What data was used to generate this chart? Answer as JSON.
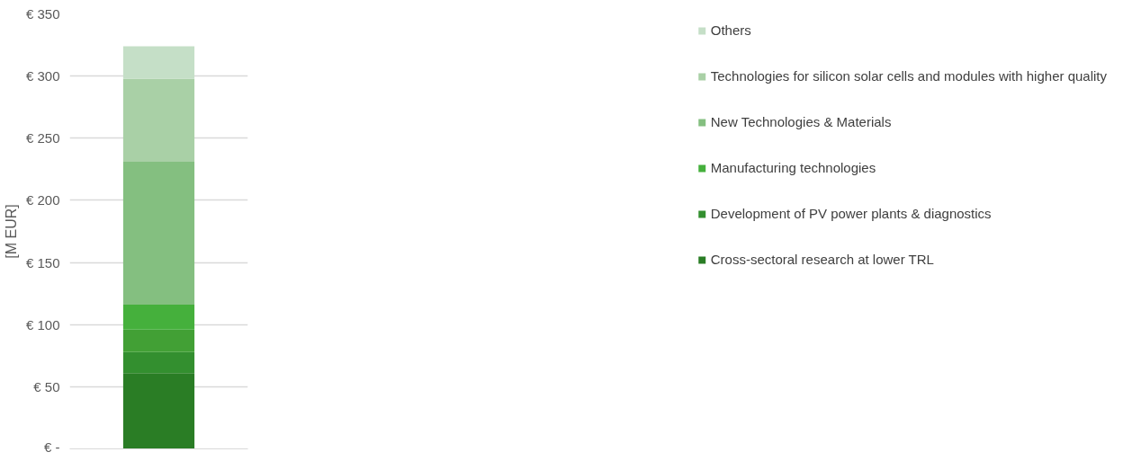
{
  "chart_data": {
    "type": "bar",
    "stacked": true,
    "ylabel": "[M EUR]",
    "categories": [
      null
    ],
    "series": [
      {
        "name": "Cross-sectoral research at lower TRL",
        "color": "#2a7d25",
        "values": [
          61
        ]
      },
      {
        "name": "Development of PV power plants & diagnostics",
        "color": "#338f2f",
        "values": [
          17
        ]
      },
      {
        "color": "#42a035",
        "values": [
          18
        ]
      },
      {
        "name": "Manufacturing technologies",
        "color": "#45b03c",
        "values": [
          20
        ]
      },
      {
        "name": "New Technologies & Materials",
        "color": "#84bf80",
        "values": [
          115
        ]
      },
      {
        "name": "Technologies for silicon solar cells and modules with higher quality",
        "color": "#a9d0a6",
        "values": [
          67
        ]
      },
      {
        "name": "Others",
        "color": "#c5dfc7",
        "values": [
          26
        ]
      }
    ],
    "ylim": [
      0,
      350
    ],
    "yticks": [
      {
        "value": 0,
        "label": "€ -"
      },
      {
        "value": 50,
        "label": "€ 50"
      },
      {
        "value": 100,
        "label": "€ 100"
      },
      {
        "value": 150,
        "label": "€ 150"
      },
      {
        "value": 200,
        "label": "€ 200"
      },
      {
        "value": 250,
        "label": "€ 250"
      },
      {
        "value": 300,
        "label": "€ 300"
      },
      {
        "value": 350,
        "label": "€ 350"
      }
    ],
    "grid": "y",
    "legend": "right",
    "tick_labels": "y"
  }
}
